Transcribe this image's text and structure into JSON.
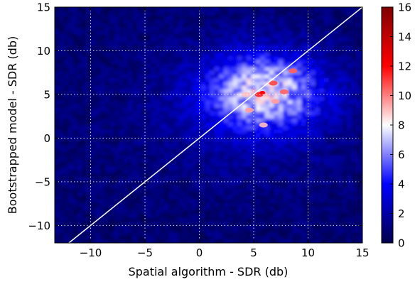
{
  "chart_data": {
    "type": "heatmap",
    "title": "",
    "xlabel": "Spatial algorithm - SDR (db)",
    "ylabel": "Bootstrapped model - SDR (db)",
    "xlim": [
      -13.3,
      15
    ],
    "ylim": [
      -12,
      15
    ],
    "x_ticks": [
      -10,
      -5,
      0,
      5,
      10,
      15
    ],
    "y_ticks": [
      -10,
      -5,
      0,
      5,
      10,
      15
    ],
    "x_tick_labels": [
      "−10",
      "−5",
      "0",
      "5",
      "10",
      "15"
    ],
    "y_tick_labels": [
      "−10",
      "−5",
      "0",
      "5",
      "10",
      "15"
    ],
    "grid": true,
    "grid_style": "dotted white",
    "colormap": "seismic",
    "colormap_colors": [
      "#00004c",
      "#0000ff",
      "#ffffff",
      "#ff0000",
      "#7f0000"
    ],
    "colorbar": {
      "range": [
        0,
        16
      ],
      "ticks": [
        0,
        2,
        4,
        6,
        8,
        10,
        12,
        14,
        16
      ],
      "tick_labels": [
        "0",
        "2",
        "4",
        "6",
        "8",
        "10",
        "12",
        "14",
        "16"
      ]
    },
    "reference_line": {
      "label": "y = x",
      "color": "#ffffff",
      "points": [
        [
          -13.3,
          -13.3
        ],
        [
          15,
          15
        ]
      ]
    },
    "density_peak": {
      "x": 5.8,
      "y": 5.2,
      "max_density": 12
    },
    "hotspots": [
      {
        "x": 5.5,
        "y": 5.0,
        "value": 11.5
      },
      {
        "x": 6.8,
        "y": 6.3,
        "value": 11
      },
      {
        "x": 8.6,
        "y": 7.7,
        "value": 10.5
      },
      {
        "x": 7.8,
        "y": 5.3,
        "value": 10.5
      },
      {
        "x": 4.6,
        "y": 3.2,
        "value": 9.5
      },
      {
        "x": 7.0,
        "y": 4.2,
        "value": 9.5
      },
      {
        "x": 5.9,
        "y": 1.5,
        "value": 9
      },
      {
        "x": 4.3,
        "y": 5.0,
        "value": 9
      }
    ]
  }
}
